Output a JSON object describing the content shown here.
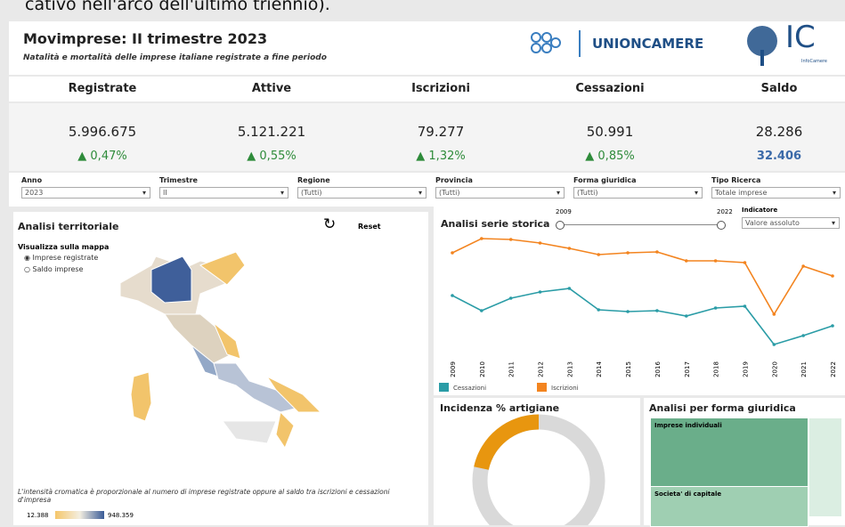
{
  "caption_top": "cativo nell'arco dell'ultimo triennio).",
  "header": {
    "title": "Movimprese: II trimestre 2023",
    "subtitle": "Natalità e mortalità delle imprese italiane registrate a fine periodo",
    "logos": [
      "UNIONCAMERE",
      "IC",
      "InfoCamere"
    ]
  },
  "kpis": [
    {
      "label": "Registrate",
      "value": "5.996.675",
      "change": "▲ 0,47%"
    },
    {
      "label": "Attive",
      "value": "5.121.221",
      "change": "▲ 0,55%"
    },
    {
      "label": "Iscrizioni",
      "value": "79.277",
      "change": "▲ 1,32%"
    },
    {
      "label": "Cessazioni",
      "value": "50.991",
      "change": "▲ 0,85%"
    },
    {
      "label": "Saldo",
      "value": "28.286",
      "change": "32.406"
    }
  ],
  "filters": [
    {
      "label": "Anno",
      "value": "2023"
    },
    {
      "label": "Trimestre",
      "value": "II"
    },
    {
      "label": "Regione",
      "value": "(Tutti)"
    },
    {
      "label": "Provincia",
      "value": "(Tutti)"
    },
    {
      "label": "Forma giuridica",
      "value": "(Tutti)"
    },
    {
      "label": "Tipo Ricerca",
      "value": "Totale imprese"
    }
  ],
  "territorial": {
    "title": "Analisi territoriale",
    "reset": "Reset",
    "map_label": "Visualizza sulla mappa",
    "options": [
      "Imprese registrate",
      "Saldo imprese"
    ],
    "note": "L'intensità cromatica è proporzionale al numero di imprese registrate oppure al saldo tra iscrizioni e cessazioni d'impresa",
    "scale_min": "12.388",
    "scale_max": "948.359"
  },
  "series_panel": {
    "title": "Analisi serie storica",
    "slider_from": "2009",
    "slider_to": "2022",
    "indicator_label": "Indicatore",
    "indicator_value": "Valore assoluto"
  },
  "chart_data": [
    {
      "type": "line",
      "categories": [
        "2009",
        "2010",
        "2011",
        "2012",
        "2013",
        "2014",
        "2015",
        "2016",
        "2017",
        "2018",
        "2019",
        "2020",
        "2021",
        "2022"
      ],
      "ylim": [
        41000,
        107000
      ],
      "series": [
        {
          "name": "Cessazioni",
          "color": "#2a9ca6",
          "values": [
            71000,
            62500,
            69500,
            73000,
            75000,
            63000,
            62000,
            62500,
            59500,
            64000,
            65000,
            43500,
            48500,
            54000
          ]
        },
        {
          "name": "Iscrizioni",
          "color": "#f3841f",
          "values": [
            95000,
            103000,
            102500,
            100500,
            97500,
            94000,
            95000,
            95500,
            90500,
            90500,
            89500,
            60500,
            87500,
            82000
          ]
        }
      ]
    },
    {
      "type": "donut",
      "title": "Incidenza % artigiane",
      "values": [
        21.6
      ],
      "color": "#e8960f",
      "rest_color": "#d9d9d9"
    }
  ],
  "treemap": {
    "title": "Analisi per forma giuridica",
    "labels": [
      "Imprese individuali",
      "Societa' di capitale"
    ]
  }
}
